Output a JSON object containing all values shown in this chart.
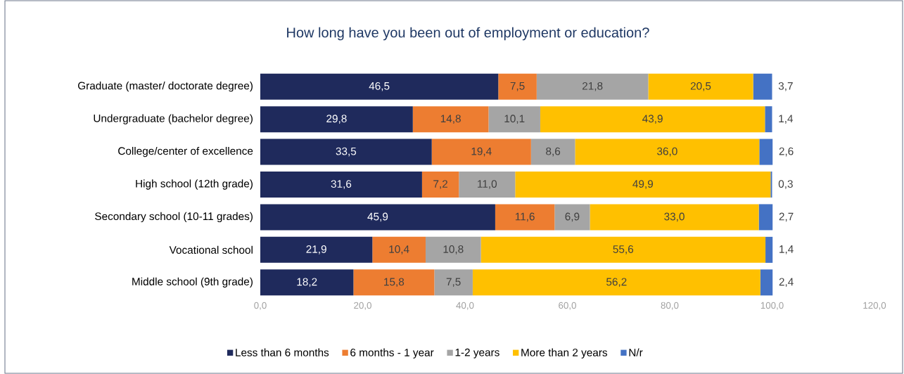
{
  "chart_data": {
    "type": "bar",
    "orientation": "horizontal",
    "stacked": true,
    "title": "How long have you been out of employment or education?",
    "categories": [
      "Graduate (master/ doctorate degree)",
      "Undergraduate (bachelor degree)",
      "College/center of excellence",
      "High school (12th grade)",
      "Secondary school (10-11 grades)",
      "Vocational school",
      "Middle school (9th grade)"
    ],
    "series": [
      {
        "name": "Less than 6 months",
        "color": "#1f2a5c",
        "values": [
          46.5,
          29.8,
          33.5,
          31.6,
          45.9,
          21.9,
          18.2
        ],
        "value_labels": [
          "46,5",
          "29,8",
          "33,5",
          "31,6",
          "45,9",
          "21,9",
          "18,2"
        ]
      },
      {
        "name": "6 months - 1 year",
        "color": "#ed7d31",
        "values": [
          7.5,
          14.8,
          19.4,
          7.2,
          11.6,
          10.4,
          15.8
        ],
        "value_labels": [
          "7,5",
          "14,8",
          "19,4",
          "7,2",
          "11,6",
          "10,4",
          "15,8"
        ]
      },
      {
        "name": "1-2 years",
        "color": "#a5a5a5",
        "values": [
          21.8,
          10.1,
          8.6,
          11.0,
          6.9,
          10.8,
          7.5
        ],
        "value_labels": [
          "21,8",
          "10,1",
          "8,6",
          "11,0",
          "6,9",
          "10,8",
          "7,5"
        ]
      },
      {
        "name": "More than 2 years",
        "color": "#ffc000",
        "values": [
          20.5,
          43.9,
          36.0,
          49.9,
          33.0,
          55.6,
          56.2
        ],
        "value_labels": [
          "20,5",
          "43,9",
          "36,0",
          "49,9",
          "33,0",
          "55,6",
          "56,2"
        ]
      },
      {
        "name": "N/r",
        "color": "#4472c4",
        "values": [
          3.7,
          1.4,
          2.6,
          0.3,
          2.7,
          1.4,
          2.4
        ],
        "value_labels": [
          "3,7",
          "1,4",
          "2,6",
          "0,3",
          "2,7",
          "1,4",
          "2,4"
        ]
      }
    ],
    "xlim": [
      0,
      120
    ],
    "xticks": [
      {
        "value": 0,
        "label": "0,0"
      },
      {
        "value": 20,
        "label": "20,0"
      },
      {
        "value": 40,
        "label": "40,0"
      },
      {
        "value": 60,
        "label": "60,0"
      },
      {
        "value": 80,
        "label": "80,0"
      },
      {
        "value": 100,
        "label": "100,0"
      },
      {
        "value": 120,
        "label": "120,0"
      }
    ],
    "legend": "bottom"
  }
}
